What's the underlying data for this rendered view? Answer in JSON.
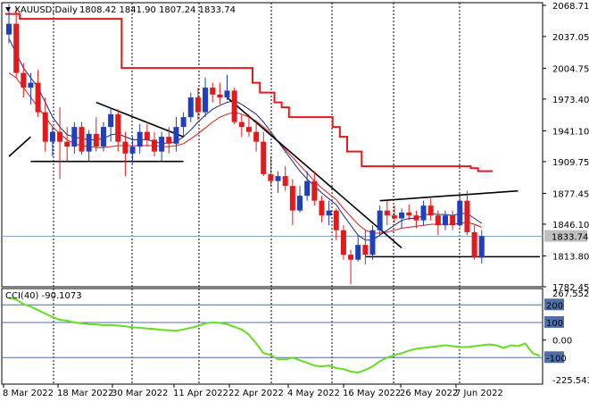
{
  "chart_data": [
    {
      "type": "candlestick",
      "symbol_text": "XAUUSD,Daily",
      "ohlc_text": "1808.42 1841.90 1807.24 1833.74",
      "ylim": [
        1782.45,
        2068.71
      ],
      "y_ticks": [
        "2068.71",
        "2037.05",
        "2004.75",
        "1973.40",
        "1941.10",
        "1909.75",
        "1877.45",
        "1846.10",
        "1813.80",
        "1782.45"
      ],
      "last_price": "1833.74",
      "x_ticks": [
        "8 Mar 2022",
        "18 Mar 2022",
        "30 Mar 2022",
        "11 Apr 2022",
        "22 Apr 2022",
        "4 May 2022",
        "16 May 2022",
        "26 May 2022",
        "7 Jun 2022"
      ],
      "candles": [
        [
          2039,
          2070,
          2030,
          2050
        ],
        [
          2050,
          2068,
          1995,
          2000
        ],
        [
          2000,
          2010,
          1975,
          1985
        ],
        [
          1985,
          2000,
          1968,
          1990
        ],
        [
          1990,
          2003,
          1955,
          1960
        ],
        [
          1960,
          1975,
          1920,
          1930
        ],
        [
          1930,
          1945,
          1915,
          1940
        ],
        [
          1940,
          1965,
          1892,
          1930
        ],
        [
          1930,
          1945,
          1910,
          1925
        ],
        [
          1925,
          1950,
          1918,
          1945
        ],
        [
          1945,
          1950,
          1917,
          1920
        ],
        [
          1920,
          1942,
          1910,
          1938
        ],
        [
          1938,
          1955,
          1920,
          1925
        ],
        [
          1925,
          1950,
          1920,
          1945
        ],
        [
          1945,
          1965,
          1930,
          1958
        ],
        [
          1958,
          1963,
          1920,
          1930
        ],
        [
          1930,
          1940,
          1895,
          1918
        ],
        [
          1918,
          1935,
          1908,
          1925
        ],
        [
          1925,
          1948,
          1918,
          1940
        ],
        [
          1940,
          1948,
          1925,
          1932
        ],
        [
          1932,
          1940,
          1915,
          1920
        ],
        [
          1920,
          1940,
          1910,
          1935
        ],
        [
          1935,
          1945,
          1918,
          1928
        ],
        [
          1928,
          1955,
          1920,
          1945
        ],
        [
          1945,
          1960,
          1935,
          1955
        ],
        [
          1955,
          1980,
          1950,
          1975
        ],
        [
          1975,
          1985,
          1952,
          1960
        ],
        [
          1960,
          1995,
          1955,
          1985
        ],
        [
          1985,
          1990,
          1970,
          1978
        ],
        [
          1978,
          1990,
          1968,
          1975
        ],
        [
          1975,
          1998,
          1972,
          1982
        ],
        [
          1982,
          1985,
          1948,
          1950
        ],
        [
          1950,
          1958,
          1935,
          1945
        ],
        [
          1945,
          1958,
          1935,
          1940
        ],
        [
          1940,
          1950,
          1920,
          1930
        ],
        [
          1930,
          1940,
          1895,
          1897
        ],
        [
          1897,
          1915,
          1885,
          1890
        ],
        [
          1890,
          1900,
          1878,
          1895
        ],
        [
          1895,
          1905,
          1880,
          1885
        ],
        [
          1885,
          1892,
          1845,
          1860
        ],
        [
          1860,
          1885,
          1858,
          1875
        ],
        [
          1875,
          1900,
          1870,
          1890
        ],
        [
          1890,
          1900,
          1865,
          1870
        ],
        [
          1870,
          1875,
          1848,
          1855
        ],
        [
          1855,
          1870,
          1845,
          1860
        ],
        [
          1860,
          1862,
          1830,
          1840
        ],
        [
          1840,
          1845,
          1810,
          1815
        ],
        [
          1815,
          1820,
          1785,
          1810
        ],
        [
          1810,
          1835,
          1808,
          1825
        ],
        [
          1825,
          1840,
          1805,
          1815
        ],
        [
          1815,
          1845,
          1810,
          1840
        ],
        [
          1840,
          1865,
          1835,
          1860
        ],
        [
          1860,
          1870,
          1845,
          1855
        ],
        [
          1855,
          1865,
          1848,
          1852
        ],
        [
          1852,
          1862,
          1842,
          1858
        ],
        [
          1858,
          1866,
          1850,
          1855
        ],
        [
          1855,
          1860,
          1842,
          1850
        ],
        [
          1850,
          1870,
          1845,
          1865
        ],
        [
          1865,
          1872,
          1850,
          1855
        ],
        [
          1855,
          1860,
          1835,
          1845
        ],
        [
          1845,
          1860,
          1840,
          1855
        ],
        [
          1855,
          1860,
          1840,
          1845
        ],
        [
          1845,
          1875,
          1843,
          1870
        ],
        [
          1870,
          1880,
          1835,
          1838
        ],
        [
          1838,
          1845,
          1810,
          1812
        ],
        [
          1812,
          1840,
          1806,
          1834
        ]
      ],
      "ma_fast": [
        2035,
        2020,
        2005,
        1995,
        1985,
        1970,
        1955,
        1945,
        1937,
        1935,
        1933,
        1932,
        1932,
        1933,
        1937,
        1938,
        1935,
        1932,
        1932,
        1932,
        1930,
        1928,
        1929,
        1930,
        1935,
        1942,
        1950,
        1957,
        1963,
        1967,
        1970,
        1972,
        1968,
        1963,
        1958,
        1950,
        1940,
        1930,
        1920,
        1910,
        1900,
        1892,
        1885,
        1878,
        1872,
        1866,
        1855,
        1845,
        1835,
        1830,
        1830,
        1835,
        1840,
        1845,
        1850,
        1852,
        1852,
        1855,
        1857,
        1856,
        1856,
        1855,
        1857,
        1857,
        1852,
        1847
      ],
      "ma_slow": [
        2000,
        1995,
        1985,
        1975,
        1965,
        1955,
        1945,
        1938,
        1932,
        1928,
        1926,
        1925,
        1924,
        1924,
        1925,
        1926,
        1926,
        1926,
        1926,
        1926,
        1926,
        1925,
        1925,
        1926,
        1928,
        1933,
        1938,
        1944,
        1950,
        1955,
        1958,
        1960,
        1958,
        1955,
        1951,
        1945,
        1938,
        1930,
        1922,
        1914,
        1906,
        1898,
        1890,
        1883,
        1877,
        1871,
        1862,
        1854,
        1846,
        1840,
        1837,
        1837,
        1838,
        1840,
        1842,
        1843,
        1844,
        1845,
        1846,
        1846,
        1846,
        1846,
        1847,
        1848,
        1846,
        1843
      ],
      "channel_upper": [
        [
          0,
          2060
        ],
        [
          1,
          2060
        ],
        [
          2,
          2055
        ],
        [
          3,
          2055
        ],
        [
          4,
          2055
        ],
        [
          5,
          2055
        ],
        [
          6,
          2055
        ],
        [
          7,
          2055
        ],
        [
          8,
          2055
        ],
        [
          9,
          2055
        ],
        [
          10,
          2055
        ],
        [
          11,
          2055
        ],
        [
          12,
          2055
        ],
        [
          13,
          2055
        ],
        [
          14,
          2055
        ],
        [
          15,
          2055
        ],
        [
          16,
          2005
        ],
        [
          17,
          2005
        ],
        [
          18,
          2005
        ],
        [
          19,
          2005
        ],
        [
          20,
          2005
        ],
        [
          21,
          2005
        ],
        [
          22,
          2005
        ],
        [
          23,
          2005
        ],
        [
          24,
          2005
        ],
        [
          25,
          2005
        ],
        [
          26,
          2005
        ],
        [
          27,
          2005
        ],
        [
          28,
          2005
        ],
        [
          29,
          2005
        ],
        [
          30,
          2005
        ],
        [
          31,
          2005
        ],
        [
          32,
          2005
        ],
        [
          33,
          2005
        ],
        [
          34,
          1990
        ],
        [
          35,
          1980
        ],
        [
          36,
          1980
        ],
        [
          37,
          1970
        ],
        [
          38,
          1965
        ],
        [
          39,
          1955
        ],
        [
          40,
          1955
        ],
        [
          41,
          1955
        ],
        [
          42,
          1955
        ],
        [
          43,
          1955
        ],
        [
          44,
          1955
        ],
        [
          45,
          1945
        ],
        [
          46,
          1935
        ],
        [
          47,
          1920
        ],
        [
          48,
          1920
        ],
        [
          49,
          1905
        ],
        [
          50,
          1905
        ],
        [
          51,
          1905
        ],
        [
          52,
          1905
        ],
        [
          53,
          1905
        ],
        [
          54,
          1905
        ],
        [
          55,
          1905
        ],
        [
          56,
          1905
        ],
        [
          57,
          1905
        ],
        [
          58,
          1905
        ],
        [
          59,
          1905
        ],
        [
          60,
          1905
        ],
        [
          61,
          1905
        ],
        [
          62,
          1905
        ],
        [
          63,
          1905
        ],
        [
          64,
          1903
        ],
        [
          65,
          1900
        ],
        [
          66,
          1900
        ]
      ],
      "trend_lines": [
        [
          [
            0,
            1915
          ],
          [
            3,
            1935
          ]
        ],
        [
          [
            3,
            1910
          ],
          [
            24,
            1910
          ]
        ],
        [
          [
            12,
            1970
          ],
          [
            24,
            1935
          ]
        ],
        [
          [
            30,
            1975
          ],
          [
            54,
            1822
          ]
        ],
        [
          [
            51,
            1870
          ],
          [
            70,
            1880
          ]
        ],
        [
          [
            49,
            1813
          ],
          [
            73,
            1813
          ]
        ]
      ]
    },
    {
      "type": "line",
      "title_text": "CCI(40) -90.1073",
      "ylim": [
        -225.5432,
        267.5525
      ],
      "y_ticks": [
        "267.5525",
        "200",
        "100",
        "0.00",
        "-100",
        "-225.5432"
      ],
      "levels": [
        200,
        100,
        -100
      ],
      "values": [
        240,
        230,
        205,
        190,
        170,
        150,
        130,
        115,
        110,
        100,
        95,
        90,
        88,
        85,
        86,
        82,
        78,
        72,
        70,
        65,
        63,
        58,
        55,
        53,
        60,
        70,
        80,
        95,
        100,
        98,
        90,
        75,
        60,
        30,
        -20,
        -75,
        -85,
        -110,
        -110,
        -100,
        -115,
        -130,
        -145,
        -150,
        -145,
        -160,
        -165,
        -180,
        -185,
        -170,
        -150,
        -120,
        -100,
        -85,
        -75,
        -60,
        -50,
        -45,
        -40,
        -35,
        -30,
        -35,
        -40,
        -40,
        -35,
        -30,
        -25,
        -30,
        -45,
        -30,
        -35,
        -20,
        -75,
        -90
      ]
    }
  ]
}
